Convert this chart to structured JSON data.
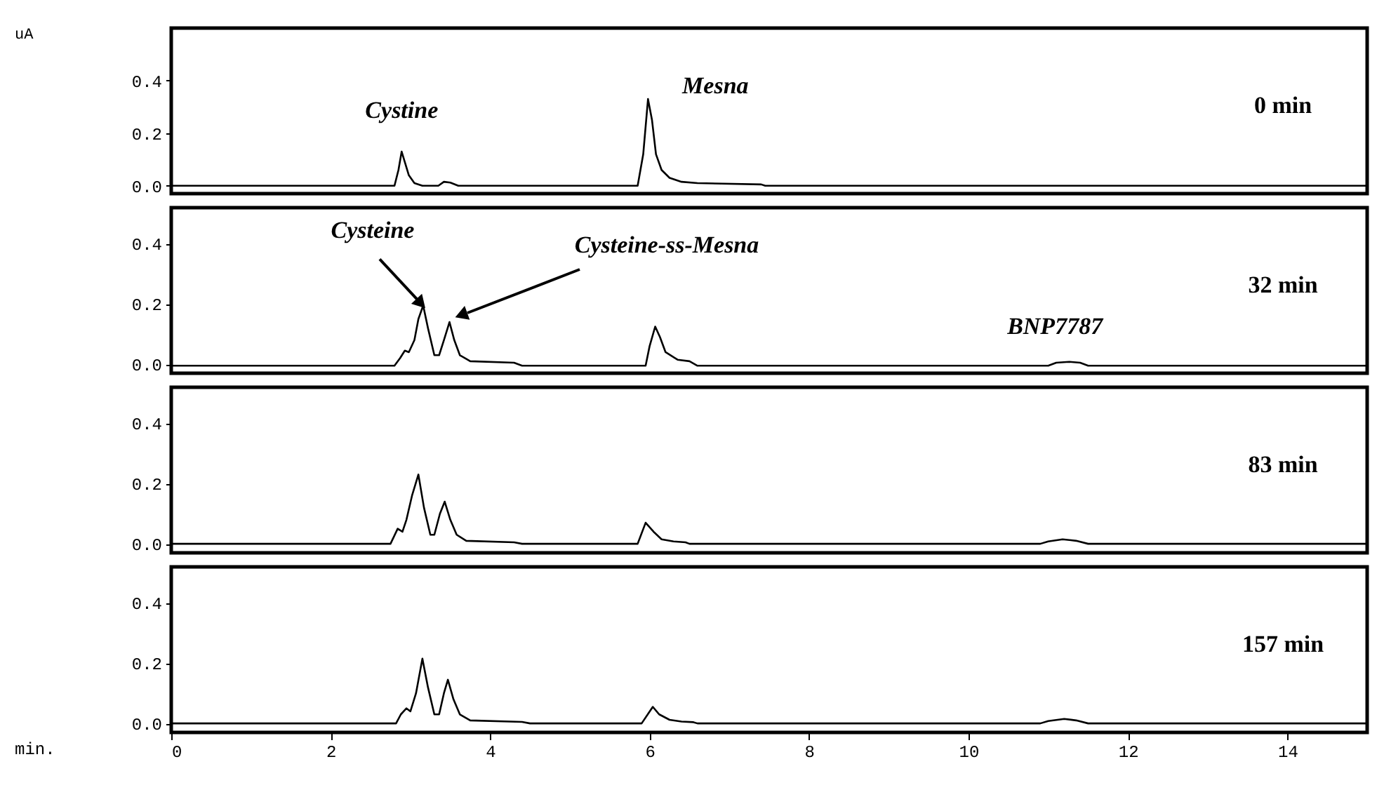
{
  "chart_data": [
    {
      "type": "line",
      "ylabel": "uA",
      "xlim": [
        0,
        15
      ],
      "ylim": [
        -0.03,
        0.6
      ],
      "xticks": [
        0,
        2,
        4,
        6,
        8,
        10,
        12,
        14
      ],
      "yticks": [
        {
          "value": 0,
          "label": "0.0"
        },
        {
          "value": 0.2,
          "label": "0.2"
        },
        {
          "value": 0.4,
          "label": "0.4"
        }
      ],
      "tick_labels": "y",
      "x": [
        0,
        2.8,
        2.85,
        2.89,
        2.93,
        2.98,
        3.05,
        3.15,
        3.35,
        3.42,
        3.5,
        3.6,
        5.85,
        5.92,
        5.98,
        6.03,
        6.08,
        6.15,
        6.25,
        6.4,
        6.6,
        7.4,
        7.45,
        15
      ],
      "series": [
        {
          "color": "#000000",
          "values": [
            0,
            0,
            0.06,
            0.13,
            0.09,
            0.04,
            0.01,
            0,
            0,
            0.015,
            0.012,
            0,
            0,
            0.12,
            0.33,
            0.25,
            0.12,
            0.06,
            0.03,
            0.015,
            0.01,
            0.005,
            0,
            0
          ]
        }
      ],
      "annotations": [
        {
          "text": "Cystine",
          "x": 2.89,
          "y": 0.13
        },
        {
          "text": "Mesna",
          "x": 5.98,
          "y": 0.33
        },
        "0 min"
      ]
    },
    {
      "type": "line",
      "xlim": [
        0,
        15
      ],
      "ylim": [
        -0.03,
        0.52
      ],
      "xticks": [
        0,
        2,
        4,
        6,
        8,
        10,
        12,
        14
      ],
      "yticks": [
        {
          "value": 0,
          "label": "0.0"
        },
        {
          "value": 0.2,
          "label": "0.2"
        },
        {
          "value": 0.4,
          "label": "0.4"
        }
      ],
      "tick_labels": "y",
      "x": [
        0,
        2.8,
        2.87,
        2.93,
        2.98,
        3.05,
        3.1,
        3.16,
        3.22,
        3.3,
        3.36,
        3.42,
        3.49,
        3.55,
        3.62,
        3.75,
        4.3,
        4.4,
        5.95,
        6.0,
        6.07,
        6.13,
        6.2,
        6.35,
        6.5,
        6.6,
        11.0,
        11.1,
        11.26,
        11.4,
        11.5,
        15
      ],
      "series": [
        {
          "color": "#000000",
          "values": [
            -0.005,
            -0.005,
            0.02,
            0.045,
            0.04,
            0.08,
            0.15,
            0.195,
            0.12,
            0.03,
            0.03,
            0.08,
            0.14,
            0.08,
            0.03,
            0.01,
            0.005,
            -0.005,
            -0.005,
            0.06,
            0.125,
            0.09,
            0.04,
            0.015,
            0.01,
            -0.005,
            -0.005,
            0.005,
            0.008,
            0.005,
            -0.005,
            -0.005
          ]
        }
      ],
      "annotations": [
        {
          "text": "Cysteine",
          "x": 3.16,
          "y": 0.195
        },
        "Cysteine-ss-Mesna",
        {
          "text": "BNP7787",
          "x": 11.26,
          "y": 0.008
        },
        "32 min"
      ]
    },
    {
      "type": "line",
      "xlim": [
        0,
        15
      ],
      "ylim": [
        -0.03,
        0.52
      ],
      "xticks": [
        0,
        2,
        4,
        6,
        8,
        10,
        12,
        14
      ],
      "yticks": [
        {
          "value": 0,
          "label": "0.0"
        },
        {
          "value": 0.2,
          "label": "0.2"
        },
        {
          "value": 0.4,
          "label": "0.4"
        }
      ],
      "tick_labels": "y",
      "x": [
        0,
        2.75,
        2.84,
        2.9,
        2.95,
        3.02,
        3.1,
        3.17,
        3.25,
        3.3,
        3.37,
        3.43,
        3.5,
        3.58,
        3.7,
        4.3,
        4.4,
        5.85,
        5.95,
        6.05,
        6.15,
        6.3,
        6.45,
        6.5,
        10.9,
        11.0,
        11.18,
        11.35,
        11.5,
        15
      ],
      "series": [
        {
          "color": "#000000",
          "values": [
            0,
            0,
            0.05,
            0.04,
            0.08,
            0.16,
            0.23,
            0.12,
            0.03,
            0.03,
            0.1,
            0.14,
            0.08,
            0.03,
            0.01,
            0.005,
            0,
            0,
            0.07,
            0.04,
            0.015,
            0.008,
            0.005,
            0,
            0,
            0.008,
            0.015,
            0.01,
            0,
            0
          ]
        }
      ],
      "annotations": [
        "83 min"
      ]
    },
    {
      "type": "line",
      "xlabel": "min.",
      "xlim": [
        0,
        15
      ],
      "ylim": [
        -0.03,
        0.52
      ],
      "xticks": [
        0,
        2,
        4,
        6,
        8,
        10,
        12,
        14
      ],
      "yticks": [
        {
          "value": 0,
          "label": "0.0"
        },
        {
          "value": 0.2,
          "label": "0.2"
        },
        {
          "value": 0.4,
          "label": "0.4"
        }
      ],
      "x": [
        0,
        2.82,
        2.88,
        2.95,
        3.0,
        3.07,
        3.15,
        3.22,
        3.3,
        3.36,
        3.42,
        3.47,
        3.54,
        3.62,
        3.75,
        4.4,
        4.5,
        5.9,
        6.04,
        6.12,
        6.25,
        6.4,
        6.55,
        6.6,
        10.9,
        11.0,
        11.2,
        11.35,
        11.5,
        15
      ],
      "series": [
        {
          "color": "#000000",
          "values": [
            0,
            0,
            0.03,
            0.05,
            0.04,
            0.1,
            0.215,
            0.12,
            0.03,
            0.03,
            0.1,
            0.145,
            0.08,
            0.03,
            0.01,
            0.005,
            0,
            0,
            0.055,
            0.03,
            0.012,
            0.006,
            0.004,
            0,
            0,
            0.008,
            0.015,
            0.01,
            0,
            0
          ]
        }
      ],
      "annotations": [
        "157 min"
      ]
    }
  ]
}
